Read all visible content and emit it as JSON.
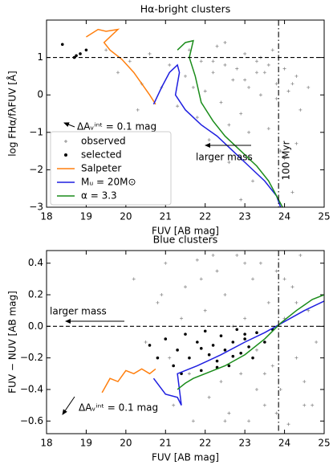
{
  "chart_data": [
    {
      "type": "scatter",
      "title": "Hα-bright clusters",
      "xlabel": "FUV [AB mag]",
      "ylabel": "log FHα/fλFUV [Å]",
      "xlim": [
        18,
        25
      ],
      "ylim": [
        -3,
        2
      ],
      "xticks": [
        18,
        19,
        20,
        21,
        22,
        23,
        24,
        25
      ],
      "yticks": [
        {
          "value": -3,
          "label": "−3"
        },
        {
          "value": -2,
          "label": "−2"
        },
        {
          "value": -1,
          "label": "−1"
        },
        0,
        1
      ],
      "hline": 1,
      "vline": 23.85,
      "legend": "lower left",
      "annotations": [
        "100 Myr",
        "larger mass",
        "ΔAᵥⁱⁿᵗ = 0.1 mag"
      ],
      "series": [
        {
          "name": "observed",
          "marker": "+",
          "color": "#8c8c8c",
          "x": [
            19.5,
            19.8,
            20.1,
            20.4,
            20.6,
            20.9,
            21.1,
            21.3,
            21.5,
            21.6,
            21.8,
            21.9,
            22.0,
            22.1,
            22.2,
            22.3,
            22.4,
            22.5,
            22.6,
            22.7,
            22.8,
            22.9,
            23.0,
            23.1,
            23.2,
            23.3,
            23.4,
            23.5,
            23.6,
            23.7,
            23.8,
            23.9,
            24.0,
            24.1,
            24.2,
            24.3,
            24.4,
            22.2,
            22.6,
            23.0,
            23.4,
            23.8,
            24.2,
            22.5,
            23.1,
            23.6,
            24.0,
            21.7,
            22.9,
            23.3,
            24.3,
            24.6,
            20.3,
            21.0
          ],
          "values": [
            1.2,
            0.6,
            0.9,
            0.3,
            1.1,
            0.2,
            0.8,
            -0.3,
            0.5,
            1.2,
            -0.6,
            0.9,
            0.1,
            -1.2,
            0.6,
            1.3,
            -0.2,
            0.8,
            -1.8,
            0.4,
            0.7,
            -0.5,
            1.1,
            0.2,
            -2.3,
            0.9,
            0.0,
            0.6,
            -0.9,
            1.2,
            0.3,
            -1.5,
            0.7,
            0.1,
            -2.6,
            0.5,
            -0.4,
            0.9,
            -0.8,
            0.4,
            1.0,
            -0.1,
            0.3,
            1.4,
            -1.0,
            0.8,
            -1.7,
            0.2,
            -2.8,
            0.6,
            -1.3,
            0.2,
            -0.4,
            -1.6
          ]
        },
        {
          "name": "selected",
          "marker": "dot",
          "color": "#000000",
          "x": [
            18.4,
            18.85,
            19.0,
            18.75,
            18.7
          ],
          "values": [
            1.35,
            1.1,
            1.2,
            1.05,
            1.0
          ]
        },
        {
          "name": "Salpeter",
          "marker": "line",
          "color": "#ff7f0e",
          "x": [
            19.0,
            19.3,
            19.5,
            19.8,
            19.45,
            19.6,
            19.9,
            20.2,
            20.4,
            20.6,
            20.75
          ],
          "values": [
            1.55,
            1.75,
            1.7,
            1.75,
            1.4,
            1.2,
            0.95,
            0.6,
            0.3,
            0.0,
            -0.25
          ]
        },
        {
          "name": "Mᵤ = 20M⊙",
          "marker": "line",
          "color": "#1f1fe0",
          "x": [
            20.7,
            20.9,
            21.1,
            21.3,
            21.35,
            21.25,
            21.5,
            21.9,
            22.3,
            22.7,
            23.1,
            23.5,
            23.8,
            23.9
          ],
          "values": [
            -0.25,
            0.2,
            0.6,
            0.8,
            0.6,
            0.0,
            -0.4,
            -0.8,
            -1.1,
            -1.5,
            -1.9,
            -2.3,
            -2.7,
            -3.0
          ]
        },
        {
          "name": "α = 3.3",
          "marker": "line",
          "color": "#1a8c1a",
          "x": [
            21.3,
            21.5,
            21.7,
            21.6,
            21.75,
            21.9,
            22.2,
            22.5,
            22.9,
            23.3,
            23.6,
            23.8,
            23.95
          ],
          "values": [
            1.2,
            1.4,
            1.45,
            1.0,
            0.5,
            -0.2,
            -0.7,
            -1.1,
            -1.5,
            -1.9,
            -2.3,
            -2.7,
            -3.0
          ]
        }
      ]
    },
    {
      "type": "scatter",
      "title": "Blue clusters",
      "xlabel": "FUV [AB mag]",
      "ylabel": "FUV − NUV [AB mag]",
      "xlim": [
        18,
        25
      ],
      "ylim": [
        -0.68,
        0.48
      ],
      "xticks": [
        18,
        19,
        20,
        21,
        22,
        23,
        24,
        25
      ],
      "yticks": [
        {
          "value": -0.6,
          "label": "−0.6"
        },
        {
          "value": -0.4,
          "label": "−0.4"
        },
        {
          "value": -0.2,
          "label": "−0.2"
        },
        {
          "value": 0,
          "label": "0.0"
        },
        0.2,
        0.4
      ],
      "hline": 0,
      "vline": 23.85,
      "annotations": [
        "larger mass",
        "ΔAᵥⁱⁿᵗ = 0.1 mag"
      ],
      "series": [
        {
          "marker": "+",
          "color": "#8c8c8c",
          "x": [
            20.2,
            20.5,
            20.8,
            21.0,
            21.2,
            21.4,
            21.5,
            21.7,
            21.8,
            22.0,
            22.1,
            22.3,
            22.4,
            22.5,
            22.6,
            22.8,
            22.9,
            23.0,
            23.1,
            23.2,
            23.3,
            23.4,
            23.5,
            23.6,
            23.7,
            23.8,
            23.9,
            24.0,
            24.1,
            24.2,
            24.3,
            24.4,
            24.5,
            24.6,
            24.7,
            21.1,
            21.6,
            22.2,
            22.7,
            23.3,
            23.8,
            24.3,
            24.8,
            20.9,
            21.9,
            22.5,
            23.0,
            23.5,
            24.0,
            24.5
          ],
          "values": [
            0.3,
            -0.1,
            0.15,
            0.4,
            -0.5,
            0.05,
            0.25,
            -0.6,
            0.42,
            0.1,
            -0.45,
            0.35,
            -0.35,
            0.2,
            -0.55,
            0.45,
            -0.3,
            0.05,
            -0.6,
            0.3,
            -0.15,
            0.4,
            -0.5,
            0.15,
            -0.25,
            0.35,
            -0.4,
            0.05,
            -0.62,
            0.25,
            -0.2,
            0.45,
            -0.35,
            0.1,
            -0.5,
            -0.2,
            -0.3,
            0.45,
            0.0,
            -0.4,
            -0.55,
            0.15,
            -0.1,
            0.2,
            0.3,
            -0.6,
            0.4,
            -0.3,
            0.3,
            -0.5
          ]
        },
        {
          "marker": "dot",
          "color": "#000000",
          "x": [
            20.6,
            20.8,
            21.0,
            21.2,
            21.3,
            21.5,
            21.6,
            21.8,
            21.9,
            22.0,
            22.1,
            22.2,
            22.3,
            22.4,
            22.5,
            22.6,
            22.7,
            22.8,
            22.9,
            23.0,
            23.1,
            23.2,
            23.3,
            23.5,
            23.7,
            21.4,
            21.9,
            22.3,
            22.7,
            23.0
          ],
          "values": [
            -0.12,
            -0.2,
            -0.08,
            -0.25,
            -0.15,
            -0.05,
            -0.2,
            -0.1,
            -0.28,
            -0.03,
            -0.18,
            -0.12,
            -0.22,
            -0.06,
            -0.15,
            -0.25,
            -0.1,
            -0.02,
            -0.17,
            -0.08,
            -0.13,
            -0.2,
            -0.04,
            -0.1,
            -0.02,
            -0.3,
            -0.14,
            -0.26,
            -0.19,
            -0.05
          ]
        },
        {
          "marker": "line",
          "color": "#ff7f0e",
          "x": [
            19.4,
            19.6,
            19.8,
            20.0,
            20.2,
            20.4,
            20.6,
            20.75
          ],
          "values": [
            -0.42,
            -0.33,
            -0.35,
            -0.28,
            -0.3,
            -0.27,
            -0.3,
            -0.27
          ]
        },
        {
          "marker": "line",
          "color": "#1f1fe0",
          "x": [
            20.7,
            21.0,
            21.3,
            21.4,
            21.3,
            21.8,
            22.4,
            23.0,
            23.5,
            24.0,
            24.5,
            25.0
          ],
          "values": [
            -0.33,
            -0.43,
            -0.45,
            -0.5,
            -0.3,
            -0.25,
            -0.18,
            -0.1,
            -0.04,
            0.03,
            0.1,
            0.16
          ]
        },
        {
          "marker": "line",
          "color": "#1a8c1a",
          "x": [
            21.3,
            21.5,
            21.7,
            22.0,
            22.5,
            23.0,
            23.5,
            23.9,
            24.3,
            24.7,
            25.0
          ],
          "values": [
            -0.4,
            -0.36,
            -0.33,
            -0.3,
            -0.25,
            -0.18,
            -0.08,
            0.02,
            0.1,
            0.17,
            0.2
          ]
        }
      ]
    }
  ]
}
